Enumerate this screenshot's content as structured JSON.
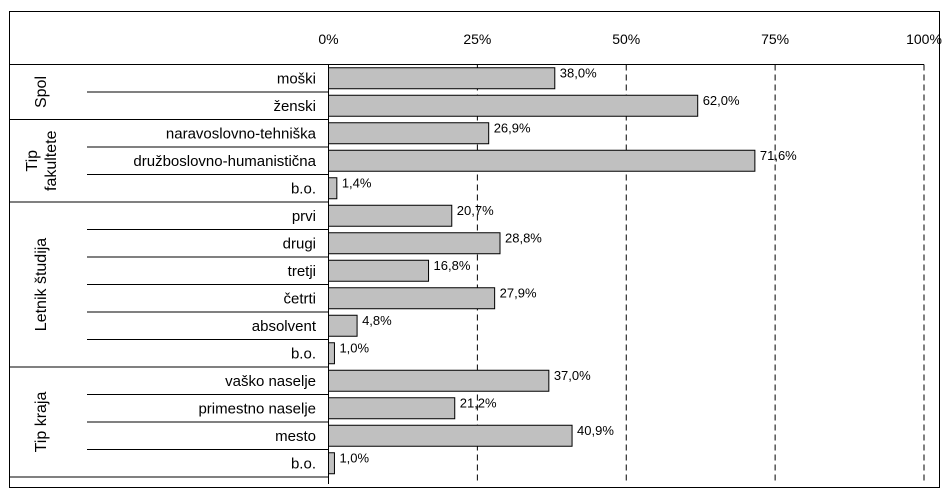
{
  "chart_data": {
    "type": "bar",
    "orientation": "horizontal",
    "x_ticks": [
      "0%",
      "25%",
      "50%",
      "75%",
      "100%"
    ],
    "xlim": [
      0,
      100
    ],
    "grid": "vertical dashed",
    "bar_color": "#c0c0c0",
    "bar_edge_color": "#000000",
    "groups": [
      {
        "label": "Spol",
        "items": [
          {
            "category": "moški",
            "value": 38.0,
            "label": "38,0%"
          },
          {
            "category": "ženski",
            "value": 62.0,
            "label": "62,0%"
          }
        ]
      },
      {
        "label_lines": [
          "Tip",
          "fakultete"
        ],
        "items": [
          {
            "category": "naravoslovno-tehniška",
            "value": 26.9,
            "label": "26,9%"
          },
          {
            "category": "družboslovno-humanistična",
            "value": 71.6,
            "label": "71,6%"
          },
          {
            "category": "b.o.",
            "value": 1.4,
            "label": "1,4%"
          }
        ]
      },
      {
        "label": "Letnik študija",
        "items": [
          {
            "category": "prvi",
            "value": 20.7,
            "label": "20,7%"
          },
          {
            "category": "drugi",
            "value": 28.8,
            "label": "28,8%"
          },
          {
            "category": "tretji",
            "value": 16.8,
            "label": "16,8%"
          },
          {
            "category": "četrti",
            "value": 27.9,
            "label": "27,9%"
          },
          {
            "category": "absolvent",
            "value": 4.8,
            "label": "4,8%"
          },
          {
            "category": "b.o.",
            "value": 1.0,
            "label": "1,0%"
          }
        ]
      },
      {
        "label": "Tip kraja",
        "items": [
          {
            "category": "vaško naselje",
            "value": 37.0,
            "label": "37,0%"
          },
          {
            "category": "primestno naselje",
            "value": 21.2,
            "label": "21,2%"
          },
          {
            "category": "mesto",
            "value": 40.9,
            "label": "40,9%"
          },
          {
            "category": "b.o.",
            "value": 1.0,
            "label": "1,0%"
          }
        ]
      }
    ]
  }
}
